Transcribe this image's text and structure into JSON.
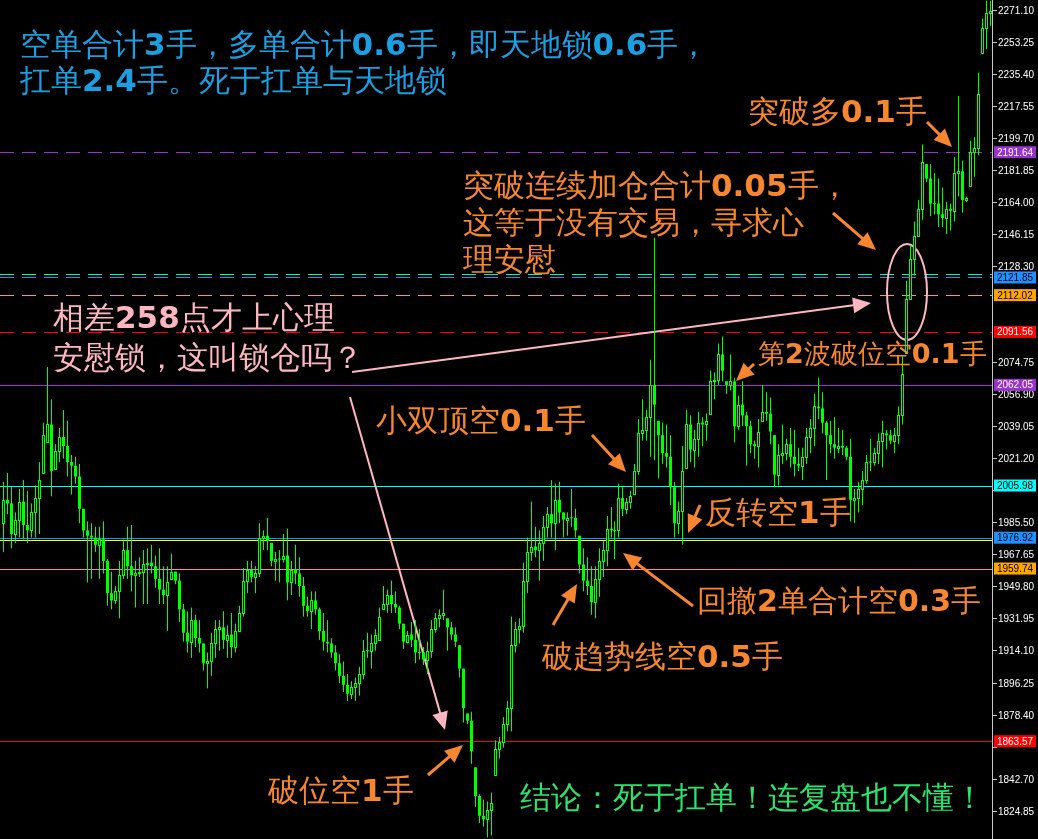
{
  "chart_data": {
    "type": "candlestick",
    "title": "空单合计**3**手，多单合计**0.6**手，即天地锁**0.6**手，扛单**2.4**手。死于扛单与天地锁",
    "categories": [
      null,
      null,
      null,
      null,
      null,
      null,
      null,
      null,
      null,
      null,
      null,
      null,
      null,
      null,
      null,
      null,
      null,
      null,
      null,
      null,
      null,
      null,
      null,
      null,
      null,
      null,
      null,
      null,
      null,
      null,
      null,
      null,
      null,
      null,
      null,
      null,
      null,
      null,
      null,
      null,
      null,
      null,
      null,
      null,
      null,
      null,
      null,
      null,
      null,
      null,
      null,
      null,
      null,
      null,
      null,
      null,
      null,
      null,
      null,
      null,
      null,
      null,
      null,
      null,
      null,
      null,
      null,
      null,
      null,
      null,
      null,
      null,
      null,
      null,
      null,
      null,
      null,
      null,
      null,
      null,
      null,
      null,
      null,
      null,
      null,
      null,
      null,
      null,
      null,
      null,
      null,
      null,
      null,
      null,
      null,
      null,
      null,
      null,
      null,
      null,
      null,
      null,
      null,
      null,
      null,
      null,
      null,
      null,
      null,
      null,
      null,
      null,
      null,
      null,
      null,
      null,
      null,
      null,
      null,
      null,
      null,
      null,
      null,
      null,
      null,
      null,
      null,
      null,
      null,
      null,
      null,
      null,
      null,
      null,
      null,
      null,
      null,
      null,
      null,
      null,
      null,
      null,
      null,
      null,
      null,
      null,
      null,
      null,
      null,
      null,
      null,
      null,
      null,
      null,
      null,
      null,
      null,
      null,
      null,
      null,
      null,
      null,
      null,
      null,
      null,
      null,
      null,
      null,
      null,
      null,
      null,
      null,
      null,
      null,
      null,
      null,
      null,
      null,
      null,
      null,
      null,
      null,
      null,
      null,
      null,
      null,
      null,
      null,
      null,
      null,
      null,
      null,
      null,
      null,
      null,
      null,
      null,
      null,
      null,
      null,
      null,
      null,
      null,
      null,
      null,
      null,
      null,
      null,
      null,
      null,
      null,
      null,
      null,
      null,
      null,
      null,
      null,
      null,
      null,
      null,
      null,
      null,
      null,
      null,
      null,
      null,
      null,
      null,
      null,
      null,
      null,
      null,
      null,
      null,
      null,
      null,
      null,
      null,
      null,
      null,
      null,
      null,
      null,
      null,
      null,
      null,
      null,
      null
    ],
    "ohlc": [
      [
        1985,
        2008,
        1969,
        1998
      ],
      [
        1998,
        2013,
        1990,
        1996
      ],
      [
        1996,
        2005,
        1971,
        1979
      ],
      [
        1979,
        1991,
        1974,
        1987
      ],
      [
        1987,
        2004,
        1977,
        1997
      ],
      [
        1997,
        2009,
        1976,
        1984
      ],
      [
        1984,
        2003,
        1974,
        1981
      ],
      [
        1981,
        1996,
        1977,
        1991
      ],
      [
        1991,
        2006,
        1977,
        1999
      ],
      [
        1999,
        2019,
        1979,
        2009
      ],
      [
        2013,
        2041,
        2013,
        2034
      ],
      [
        2030,
        2072,
        2030,
        2040
      ],
      [
        2040,
        2054,
        2000,
        2014
      ],
      [
        2015,
        2029,
        2015,
        2025
      ],
      [
        2025,
        2038,
        2019,
        2033
      ],
      [
        2033,
        2048,
        2021,
        2028
      ],
      [
        2028,
        2042,
        2011,
        2019
      ],
      [
        2019,
        2023,
        2001,
        2017
      ],
      [
        2017,
        2022,
        2007,
        2011
      ],
      [
        2011,
        2018,
        1985,
        1993
      ],
      [
        1993,
        1993,
        1977,
        1981
      ],
      [
        1981,
        1986,
        1952,
        1978
      ],
      [
        1978,
        1985,
        1954,
        1977
      ],
      [
        1977,
        1983,
        1969,
        1973
      ],
      [
        1973,
        1983,
        1954,
        1976
      ],
      [
        1976,
        1986,
        1957,
        1964
      ],
      [
        1964,
        1965,
        1939,
        1946
      ],
      [
        1946,
        1958,
        1937,
        1942
      ],
      [
        1942,
        1950,
        1940,
        1947
      ],
      [
        1947,
        1964,
        1932,
        1956
      ],
      [
        1956,
        1976,
        1954,
        1970
      ],
      [
        1970,
        1983,
        1954,
        1961
      ],
      [
        1961,
        1984,
        1947,
        1956
      ],
      [
        1956,
        1964,
        1938,
        1957
      ],
      [
        1957,
        1966,
        1955,
        1958
      ],
      [
        1958,
        1970,
        1940,
        1962
      ],
      [
        1962,
        1971,
        1940,
        1963
      ],
      [
        1963,
        1973,
        1957,
        1961
      ],
      [
        1961,
        1967,
        1949,
        1954
      ],
      [
        1954,
        1971,
        1940,
        1948
      ],
      [
        1948,
        1961,
        1940,
        1945
      ],
      [
        1945,
        1961,
        1925,
        1952
      ],
      [
        1954,
        1968,
        1954,
        1958
      ],
      [
        1958,
        1958,
        1951,
        1953
      ],
      [
        1953,
        1957,
        1930,
        1937
      ],
      [
        1937,
        1940,
        1919,
        1924
      ],
      [
        1924,
        1936,
        1913,
        1919
      ],
      [
        1919,
        1938,
        1910,
        1931
      ],
      [
        1931,
        1934,
        1916,
        1921
      ],
      [
        1921,
        1931,
        1913,
        1918
      ],
      [
        1918,
        1918,
        1903,
        1907
      ],
      [
        1907,
        1913,
        1893,
        1908
      ],
      [
        1908,
        1924,
        1900,
        1918
      ],
      [
        1918,
        1931,
        1910,
        1926
      ],
      [
        1926,
        1931,
        1914,
        1927
      ],
      [
        1927,
        1936,
        1915,
        1920
      ],
      [
        1920,
        1928,
        1910,
        1923
      ],
      [
        1923,
        1935,
        1910,
        1916
      ],
      [
        1916,
        1929,
        1913,
        1925
      ],
      [
        1925,
        1939,
        1925,
        1935
      ],
      [
        1935,
        1960,
        1933,
        1953
      ],
      [
        1953,
        1964,
        1946,
        1959
      ],
      [
        1959,
        1964,
        1952,
        1955
      ],
      [
        1955,
        1961,
        1946,
        1957
      ],
      [
        1957,
        1985,
        1955,
        1977
      ],
      [
        1977,
        1981,
        1970,
        1978
      ],
      [
        1978,
        1988,
        1970,
        1975
      ],
      [
        1974,
        1974,
        1961,
        1964
      ],
      [
        1964,
        1969,
        1953,
        1965
      ],
      [
        1965,
        1970,
        1952,
        1965
      ],
      [
        1965,
        1979,
        1963,
        1967
      ],
      [
        1967,
        1982,
        1942,
        1952
      ],
      [
        1952,
        1964,
        1945,
        1959
      ],
      [
        1959,
        1973,
        1951,
        1957
      ],
      [
        1957,
        1966,
        1944,
        1950
      ],
      [
        1950,
        1955,
        1933,
        1939
      ],
      [
        1939,
        1944,
        1933,
        1936
      ],
      [
        1936,
        1947,
        1926,
        1942
      ],
      [
        1942,
        1947,
        1934,
        1937
      ],
      [
        1937,
        1938,
        1920,
        1925
      ],
      [
        1925,
        1935,
        1914,
        1919
      ],
      [
        1919,
        1931,
        1913,
        1918
      ],
      [
        1918,
        1921,
        1910,
        1913
      ],
      [
        1913,
        1917,
        1903,
        1907
      ],
      [
        1907,
        1912,
        1896,
        1900
      ],
      [
        1900,
        1908,
        1891,
        1895
      ],
      [
        1895,
        1901,
        1886,
        1890
      ],
      [
        1890,
        1897,
        1887,
        1894
      ],
      [
        1894,
        1899,
        1886,
        1896
      ],
      [
        1896,
        1905,
        1889,
        1901
      ],
      [
        1901,
        1920,
        1898,
        1914
      ],
      [
        1914,
        1924,
        1910,
        1914
      ],
      [
        1914,
        1923,
        1904,
        1918
      ],
      [
        1918,
        1926,
        1914,
        1923
      ],
      [
        1920,
        1938,
        1920,
        1933
      ],
      [
        1937,
        1950,
        1937,
        1940
      ],
      [
        1940,
        1948,
        1935,
        1945
      ],
      [
        1945,
        1953,
        1935,
        1940
      ],
      [
        1940,
        1947,
        1935,
        1938
      ],
      [
        1938,
        1939,
        1926,
        1929
      ],
      [
        1929,
        1929,
        1915,
        1919
      ],
      [
        1919,
        1925,
        1918,
        1923
      ],
      [
        1923,
        1930,
        1916,
        1920
      ],
      [
        1920,
        1931,
        1907,
        1913
      ],
      [
        1913,
        1926,
        1909,
        1913
      ],
      [
        1913,
        1916,
        1906,
        1909
      ],
      [
        1909,
        1919,
        1901,
        1914
      ],
      [
        1914,
        1931,
        1910,
        1926
      ],
      [
        1926,
        1935,
        1924,
        1932
      ],
      [
        1932,
        1937,
        1927,
        1934
      ],
      [
        1934,
        1948,
        1931,
        1935
      ],
      [
        1932,
        1932,
        1914,
        1927
      ],
      [
        1927,
        1930,
        1920,
        1923
      ],
      [
        1923,
        1927,
        1916,
        1919
      ],
      [
        1917,
        1917,
        1899,
        1904
      ],
      [
        1904,
        1904,
        1874,
        1882
      ],
      [
        1879,
        1879,
        1873,
        1875
      ],
      [
        1875,
        1880,
        1851,
        1858
      ],
      [
        1849,
        1849,
        1827,
        1833
      ],
      [
        1833,
        1834,
        1818,
        1822
      ],
      [
        1822,
        1831,
        1816,
        1820
      ],
      [
        1820,
        1830,
        1810,
        1825
      ],
      [
        1825,
        1835,
        1811,
        1829
      ],
      [
        1845,
        1864,
        1845,
        1859
      ],
      [
        1859,
        1866,
        1854,
        1863
      ],
      [
        1863,
        1877,
        1860,
        1873
      ],
      [
        1873,
        1886,
        1869,
        1882
      ],
      [
        1882,
        1933,
        1869,
        1917
      ],
      [
        1917,
        1930,
        1913,
        1926
      ],
      [
        1926,
        1932,
        1918,
        1928
      ],
      [
        1928,
        1963,
        1924,
        1953
      ],
      [
        1953,
        1977,
        1946,
        1969
      ],
      [
        1969,
        1997,
        1964,
        1972
      ],
      [
        1972,
        1983,
        1966,
        1970
      ],
      [
        1970,
        1981,
        1953,
        1974
      ],
      [
        1974,
        1989,
        1964,
        1983
      ],
      [
        1983,
        1994,
        1977,
        1990
      ],
      [
        1990,
        2009,
        1977,
        1985
      ],
      [
        1985,
        2007,
        1970,
        1998
      ],
      [
        1998,
        2008,
        1985,
        1991
      ],
      [
        1991,
        1991,
        1977,
        1987
      ],
      [
        1987,
        1991,
        1978,
        1988
      ],
      [
        1988,
        2004,
        1983,
        1988
      ],
      [
        1988,
        1993,
        1977,
        1981
      ],
      [
        1978,
        1978,
        1957,
        1962
      ],
      [
        1962,
        1971,
        1947,
        1953
      ],
      [
        1953,
        1966,
        1945,
        1950
      ],
      [
        1950,
        1961,
        1934,
        1941
      ],
      [
        1941,
        1961,
        1932,
        1954
      ],
      [
        1954,
        1971,
        1944,
        1964
      ],
      [
        1964,
        1975,
        1955,
        1970
      ],
      [
        1970,
        1989,
        1961,
        1982
      ],
      [
        1982,
        1994,
        1977,
        1981
      ],
      [
        1981,
        1986,
        1965,
        1981
      ],
      [
        1981,
        2007,
        1977,
        1999
      ],
      [
        1999,
        2005,
        1989,
        1993
      ],
      [
        1993,
        1999,
        1990,
        1997
      ],
      [
        1997,
        2003,
        1993,
        2000
      ],
      [
        2001,
        2018,
        2001,
        2014
      ],
      [
        2014,
        2043,
        2012,
        2035
      ],
      [
        2035,
        2054,
        2031,
        2037
      ],
      [
        2037,
        2048,
        2031,
        2044
      ],
      [
        2044,
        2076,
        2022,
        2062
      ],
      [
        2062,
        2144,
        2020,
        2051
      ],
      [
        2042,
        2042,
        2010,
        2034
      ],
      [
        2034,
        2041,
        2018,
        2024
      ],
      [
        2024,
        2040,
        2016,
        2022
      ],
      [
        2022,
        2034,
        1995,
        2005
      ],
      [
        2005,
        2008,
        1977,
        1985
      ],
      [
        1985,
        1997,
        1979,
        1992
      ],
      [
        1992,
        2028,
        1973,
        2014
      ],
      [
        2016,
        2048,
        2016,
        2040
      ],
      [
        2040,
        2045,
        2019,
        2026
      ],
      [
        2026,
        2037,
        2016,
        2032
      ],
      [
        2032,
        2047,
        2022,
        2041
      ],
      [
        2041,
        2044,
        2028,
        2040
      ],
      [
        2040,
        2046,
        2031,
        2042
      ],
      [
        2046,
        2070,
        2046,
        2064
      ],
      [
        2064,
        2069,
        2054,
        2065
      ],
      [
        2065,
        2085,
        2062,
        2079
      ],
      [
        2079,
        2089,
        2064,
        2070
      ],
      [
        2064,
        2064,
        2057,
        2062
      ],
      [
        2062,
        2079,
        2059,
        2064
      ],
      [
        2064,
        2066,
        2030,
        2039
      ],
      [
        2039,
        2056,
        2037,
        2051
      ],
      [
        2051,
        2064,
        2039,
        2045
      ],
      [
        2045,
        2047,
        2017,
        2039
      ],
      [
        2039,
        2042,
        2024,
        2029
      ],
      [
        2029,
        2031,
        2021,
        2028
      ],
      [
        2028,
        2043,
        2016,
        2036
      ],
      [
        2042,
        2062,
        2042,
        2047
      ],
      [
        2047,
        2058,
        2042,
        2046
      ],
      [
        2046,
        2055,
        2029,
        2036
      ],
      [
        2034,
        2034,
        2005,
        2012
      ],
      [
        2012,
        2029,
        2006,
        2023
      ],
      [
        2023,
        2040,
        2018,
        2024
      ],
      [
        2024,
        2032,
        2020,
        2029
      ],
      [
        2029,
        2038,
        2016,
        2022
      ],
      [
        2022,
        2037,
        2011,
        2018
      ],
      [
        2018,
        2027,
        2014,
        2017
      ],
      [
        2017,
        2027,
        2009,
        2022
      ],
      [
        2022,
        2038,
        2018,
        2033
      ],
      [
        2033,
        2043,
        2024,
        2038
      ],
      [
        2038,
        2057,
        2028,
        2050
      ],
      [
        2050,
        2066,
        2043,
        2049
      ],
      [
        2049,
        2058,
        2035,
        2041
      ],
      [
        2041,
        2042,
        2009,
        2034
      ],
      [
        2034,
        2042,
        2024,
        2029
      ],
      [
        2029,
        2044,
        2021,
        2027
      ],
      [
        2027,
        2038,
        2024,
        2028
      ],
      [
        2028,
        2037,
        2023,
        2027
      ],
      [
        2027,
        2028,
        2020,
        2022
      ],
      [
        2022,
        2032,
        1986,
        1998
      ],
      [
        1998,
        2004,
        1985,
        1999
      ],
      [
        1999,
        2008,
        1991,
        2004
      ],
      [
        2004,
        2014,
        1995,
        2009
      ],
      [
        2009,
        2023,
        2007,
        2019
      ],
      [
        2019,
        2032,
        2014,
        2019
      ],
      [
        2019,
        2027,
        2017,
        2024
      ],
      [
        2024,
        2035,
        2018,
        2031
      ],
      [
        2031,
        2042,
        2016,
        2035
      ],
      [
        2035,
        2037,
        2026,
        2034
      ],
      [
        2034,
        2037,
        2029,
        2031
      ],
      [
        2031,
        2038,
        2024,
        2034
      ],
      [
        2034,
        2050,
        2029,
        2045
      ],
      [
        2045,
        2078,
        2040,
        2068
      ],
      [
        2080,
        2120,
        2080,
        2110
      ],
      [
        2110,
        2140,
        2110,
        2132
      ],
      [
        2132,
        2153,
        2123,
        2145
      ],
      [
        2145,
        2165,
        2145,
        2160
      ],
      [
        2160,
        2196,
        2154,
        2186
      ],
      [
        2185,
        2185,
        2175,
        2177
      ],
      [
        2177,
        2185,
        2156,
        2163
      ],
      [
        2163,
        2180,
        2157,
        2163
      ],
      [
        2163,
        2177,
        2150,
        2157
      ],
      [
        2157,
        2172,
        2150,
        2155
      ],
      [
        2155,
        2164,
        2146,
        2160
      ],
      [
        2160,
        2163,
        2148,
        2159
      ],
      [
        2159,
        2189,
        2153,
        2180
      ],
      [
        2180,
        2223,
        2167,
        2181
      ],
      [
        2181,
        2187,
        2158,
        2165
      ],
      [
        2165,
        2167,
        2164,
        2166
      ],
      [
        2173,
        2198,
        2173,
        2192
      ],
      [
        2192,
        2200,
        2178,
        2194
      ],
      [
        2194,
        2236,
        2190,
        2224
      ],
      [
        2247,
        2266,
        2247,
        2261
      ],
      [
        2261,
        2276,
        2249,
        2269
      ],
      [
        2269,
        2276,
        2262,
        2270
      ]
    ],
    "color": "#00ff00",
    "ylim": [
      1809.1,
      2276.4
    ],
    "yticks": [
      {
        "value": 2271.1,
        "label": "2271.10"
      },
      {
        "value": 2253.25,
        "label": "2253.25"
      },
      {
        "value": 2235.4,
        "label": "2235.40"
      },
      {
        "value": 2217.55,
        "label": "2217.55"
      },
      {
        "value": 2199.7,
        "label": "2199.70"
      },
      {
        "value": 2181.85,
        "label": "2181.85"
      },
      {
        "value": 2164,
        "label": "2164.00"
      },
      {
        "value": 2146.15,
        "label": "2146.15"
      },
      {
        "value": 2128.3,
        "label": "2128.30"
      },
      {
        "value": 2074.75,
        "label": "2074.75"
      },
      {
        "value": 2056.9,
        "label": "2056.90"
      },
      {
        "value": 2039.05,
        "label": "2039.05"
      },
      {
        "value": 2021.2,
        "label": "2021.20"
      },
      {
        "value": 2003.35,
        "label": null
      },
      {
        "value": 1985.5,
        "label": "1985.50"
      },
      {
        "value": 1967.65,
        "label": "1967.65"
      },
      {
        "value": 1949.8,
        "label": "1949.80"
      },
      {
        "value": 1931.95,
        "label": "1931.95"
      },
      {
        "value": 1914.1,
        "label": "1914.10"
      },
      {
        "value": 1896.25,
        "label": "1896.25"
      },
      {
        "value": 1878.4,
        "label": "1878.40"
      },
      {
        "value": 1860.55,
        "label": null
      },
      {
        "value": 1842.7,
        "label": "1842.70"
      },
      {
        "value": 1824.85,
        "label": "1824.85"
      }
    ],
    "ref_lines": [
      {
        "axis": "y",
        "value": 2191.64,
        "label": "2191.64",
        "color": "#9932cc",
        "line_style": "dashed"
      },
      {
        "axis": "y",
        "value": 2123.8,
        "color": "#00fa9a",
        "line_style": "dashed"
      },
      {
        "axis": "y",
        "value": 2121.85,
        "label": "2121.85",
        "color": "#1e90ff",
        "line_style": "dashed"
      },
      {
        "axis": "y",
        "value": 2112.02,
        "label": "2112.02",
        "color": "#ffa500",
        "line_style": "dashed"
      },
      {
        "axis": "y",
        "value": 2091.56,
        "label": "2091.56",
        "color": "#ff0000",
        "line_style": "dashed"
      },
      {
        "axis": "y",
        "value": 2062.05,
        "label": "2062.05",
        "color": "#9932cc",
        "line_style": "solid"
      },
      {
        "axis": "y",
        "value": 2005.98,
        "label": "2005.98",
        "color": "#00ffff",
        "line_style": "solid"
      },
      {
        "axis": "y",
        "value": 1976.92,
        "label": "1976.92",
        "color": "#1e90ff",
        "line_style": "solid"
      },
      {
        "axis": "y",
        "value": 1975.5,
        "color": "#ffff00",
        "line_style": "solid"
      },
      {
        "axis": "y",
        "value": 1959.74,
        "label": "1959.74",
        "color": "#ffa500",
        "line_style": "solid"
      },
      {
        "axis": "y",
        "value": 1863.57,
        "label": "1863.57",
        "color": "#ff0000",
        "line_style": "solid"
      }
    ],
    "annotations": [
      "突破多**0.1**手",
      "突破连续加仓合计**0.05**手，这等于没有交易，寻求心理安慰",
      "相差**258**点才上心理安慰锁，这叫锁仓吗？",
      "第**2**波破位空**0.1**手",
      "小双顶空**0.1**手",
      "反转空**1**手",
      "回撤**2**单合计空**0.3**手",
      "破趋势线空**0.5**手",
      "破位空**1**手",
      "结论：死于扛单！连复盘也不懂！"
    ]
  }
}
